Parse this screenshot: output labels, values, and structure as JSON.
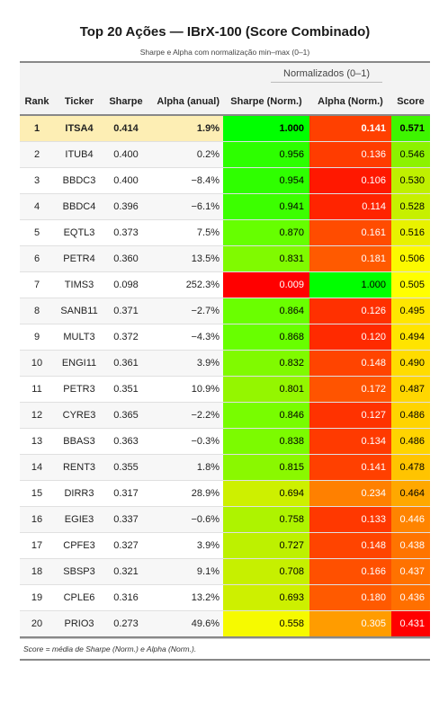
{
  "title": "Top 20 Ações — IBrX-100 (Score Combinado)",
  "subtitle": "Sharpe e Alpha com normalização min–max (0–1)",
  "spanner": "Normalizados (0–1)",
  "columns": [
    "Rank",
    "Ticker",
    "Sharpe",
    "Alpha (anual)",
    "Sharpe (Norm.)",
    "Alpha (Norm.)",
    "Score"
  ],
  "footnote": "Score = média de Sharpe (Norm.) e Alpha (Norm.).",
  "rows": [
    {
      "rank": "1",
      "ticker": "ITSA4",
      "sharpe": "0.414",
      "alpha": "1.9%",
      "sharpe_norm": "1.000",
      "alpha_norm": "0.141",
      "score": "0.571",
      "sn_color": "#00ff00",
      "an_color": "#ff4000",
      "sc_color": "#3ef500",
      "sn_text": "#000000",
      "an_text": "#ffffff",
      "sc_text": "#000000"
    },
    {
      "rank": "2",
      "ticker": "ITUB4",
      "sharpe": "0.400",
      "alpha": "0.2%",
      "sharpe_norm": "0.956",
      "alpha_norm": "0.136",
      "score": "0.546",
      "sn_color": "#2dff00",
      "an_color": "#ff3c00",
      "sc_color": "#8cf200",
      "sn_text": "#000000",
      "an_text": "#ffffff",
      "sc_text": "#000000"
    },
    {
      "rank": "3",
      "ticker": "BBDC3",
      "sharpe": "0.400",
      "alpha": "−8.4%",
      "sharpe_norm": "0.954",
      "alpha_norm": "0.106",
      "score": "0.530",
      "sn_color": "#2fff00",
      "an_color": "#ff1800",
      "sc_color": "#bff000",
      "sn_text": "#000000",
      "an_text": "#ffffff",
      "sc_text": "#000000"
    },
    {
      "rank": "4",
      "ticker": "BBDC4",
      "sharpe": "0.396",
      "alpha": "−6.1%",
      "sharpe_norm": "0.941",
      "alpha_norm": "0.114",
      "score": "0.528",
      "sn_color": "#3cff00",
      "an_color": "#ff2400",
      "sc_color": "#c6f000",
      "sn_text": "#000000",
      "an_text": "#ffffff",
      "sc_text": "#000000"
    },
    {
      "rank": "5",
      "ticker": "EQTL3",
      "sharpe": "0.373",
      "alpha": "7.5%",
      "sharpe_norm": "0.870",
      "alpha_norm": "0.161",
      "score": "0.516",
      "sn_color": "#66ff00",
      "an_color": "#ff4c00",
      "sc_color": "#e8f200",
      "sn_text": "#000000",
      "an_text": "#ffffff",
      "sc_text": "#000000"
    },
    {
      "rank": "6",
      "ticker": "PETR4",
      "sharpe": "0.360",
      "alpha": "13.5%",
      "sharpe_norm": "0.831",
      "alpha_norm": "0.181",
      "score": "0.506",
      "sn_color": "#80fa00",
      "an_color": "#ff5a00",
      "sc_color": "#fcf900",
      "sn_text": "#000000",
      "an_text": "#ffffff",
      "sc_text": "#000000"
    },
    {
      "rank": "7",
      "ticker": "TIMS3",
      "sharpe": "0.098",
      "alpha": "252.3%",
      "sharpe_norm": "0.009",
      "alpha_norm": "1.000",
      "score": "0.505",
      "sn_color": "#ff0000",
      "an_color": "#00ff00",
      "sc_color": "#ffff00",
      "sn_text": "#ffffff",
      "an_text": "#000000",
      "sc_text": "#000000"
    },
    {
      "rank": "8",
      "ticker": "SANB11",
      "sharpe": "0.371",
      "alpha": "−2.7%",
      "sharpe_norm": "0.864",
      "alpha_norm": "0.126",
      "score": "0.495",
      "sn_color": "#6aff00",
      "an_color": "#ff3000",
      "sc_color": "#ffe600",
      "sn_text": "#000000",
      "an_text": "#ffffff",
      "sc_text": "#000000"
    },
    {
      "rank": "9",
      "ticker": "MULT3",
      "sharpe": "0.372",
      "alpha": "−4.3%",
      "sharpe_norm": "0.868",
      "alpha_norm": "0.120",
      "score": "0.494",
      "sn_color": "#68ff00",
      "an_color": "#ff2a00",
      "sc_color": "#ffe400",
      "sn_text": "#000000",
      "an_text": "#ffffff",
      "sc_text": "#000000"
    },
    {
      "rank": "10",
      "ticker": "ENGI11",
      "sharpe": "0.361",
      "alpha": "3.9%",
      "sharpe_norm": "0.832",
      "alpha_norm": "0.148",
      "score": "0.490",
      "sn_color": "#80fa00",
      "an_color": "#ff4400",
      "sc_color": "#ffdc00",
      "sn_text": "#000000",
      "an_text": "#ffffff",
      "sc_text": "#000000"
    },
    {
      "rank": "11",
      "ticker": "PETR3",
      "sharpe": "0.351",
      "alpha": "10.9%",
      "sharpe_norm": "0.801",
      "alpha_norm": "0.172",
      "score": "0.487",
      "sn_color": "#94f600",
      "an_color": "#ff5400",
      "sc_color": "#ffd600",
      "sn_text": "#000000",
      "an_text": "#ffffff",
      "sc_text": "#000000"
    },
    {
      "rank": "12",
      "ticker": "CYRE3",
      "sharpe": "0.365",
      "alpha": "−2.2%",
      "sharpe_norm": "0.846",
      "alpha_norm": "0.127",
      "score": "0.486",
      "sn_color": "#78fd00",
      "an_color": "#ff3200",
      "sc_color": "#ffd400",
      "sn_text": "#000000",
      "an_text": "#ffffff",
      "sc_text": "#000000"
    },
    {
      "rank": "13",
      "ticker": "BBAS3",
      "sharpe": "0.363",
      "alpha": "−0.3%",
      "sharpe_norm": "0.838",
      "alpha_norm": "0.134",
      "score": "0.486",
      "sn_color": "#7cfb00",
      "an_color": "#ff3a00",
      "sc_color": "#ffd400",
      "sn_text": "#000000",
      "an_text": "#ffffff",
      "sc_text": "#000000"
    },
    {
      "rank": "14",
      "ticker": "RENT3",
      "sharpe": "0.355",
      "alpha": "1.8%",
      "sharpe_norm": "0.815",
      "alpha_norm": "0.141",
      "score": "0.478",
      "sn_color": "#8af800",
      "an_color": "#ff4000",
      "sc_color": "#ffc400",
      "sn_text": "#000000",
      "an_text": "#ffffff",
      "sc_text": "#000000"
    },
    {
      "rank": "15",
      "ticker": "DIRR3",
      "sharpe": "0.317",
      "alpha": "28.9%",
      "sharpe_norm": "0.694",
      "alpha_norm": "0.234",
      "score": "0.464",
      "sn_color": "#cdf000",
      "an_color": "#ff8000",
      "sc_color": "#ffa800",
      "sn_text": "#000000",
      "an_text": "#ffffff",
      "sc_text": "#000000"
    },
    {
      "rank": "16",
      "ticker": "EGIE3",
      "sharpe": "0.337",
      "alpha": "−0.6%",
      "sharpe_norm": "0.758",
      "alpha_norm": "0.133",
      "score": "0.446",
      "sn_color": "#aef300",
      "an_color": "#ff3800",
      "sc_color": "#ff8400",
      "sn_text": "#000000",
      "an_text": "#ffffff",
      "sc_text": "#ffffff"
    },
    {
      "rank": "17",
      "ticker": "CPFE3",
      "sharpe": "0.327",
      "alpha": "3.9%",
      "sharpe_norm": "0.727",
      "alpha_norm": "0.148",
      "score": "0.438",
      "sn_color": "#bdf100",
      "an_color": "#ff4400",
      "sc_color": "#ff7400",
      "sn_text": "#000000",
      "an_text": "#ffffff",
      "sc_text": "#ffffff"
    },
    {
      "rank": "18",
      "ticker": "SBSP3",
      "sharpe": "0.321",
      "alpha": "9.1%",
      "sharpe_norm": "0.708",
      "alpha_norm": "0.166",
      "score": "0.437",
      "sn_color": "#c6f000",
      "an_color": "#ff5000",
      "sc_color": "#ff7200",
      "sn_text": "#000000",
      "an_text": "#ffffff",
      "sc_text": "#ffffff"
    },
    {
      "rank": "19",
      "ticker": "CPLE6",
      "sharpe": "0.316",
      "alpha": "13.2%",
      "sharpe_norm": "0.693",
      "alpha_norm": "0.180",
      "score": "0.436",
      "sn_color": "#cdf000",
      "an_color": "#ff5a00",
      "sc_color": "#ff7000",
      "sn_text": "#000000",
      "an_text": "#ffffff",
      "sc_text": "#ffffff"
    },
    {
      "rank": "20",
      "ticker": "PRIO3",
      "sharpe": "0.273",
      "alpha": "49.6%",
      "sharpe_norm": "0.558",
      "alpha_norm": "0.305",
      "score": "0.431",
      "sn_color": "#f6fa00",
      "an_color": "#ff9c00",
      "sc_color": "#ff0000",
      "sn_text": "#000000",
      "an_text": "#ffffff",
      "sc_text": "#ffffff"
    }
  ]
}
